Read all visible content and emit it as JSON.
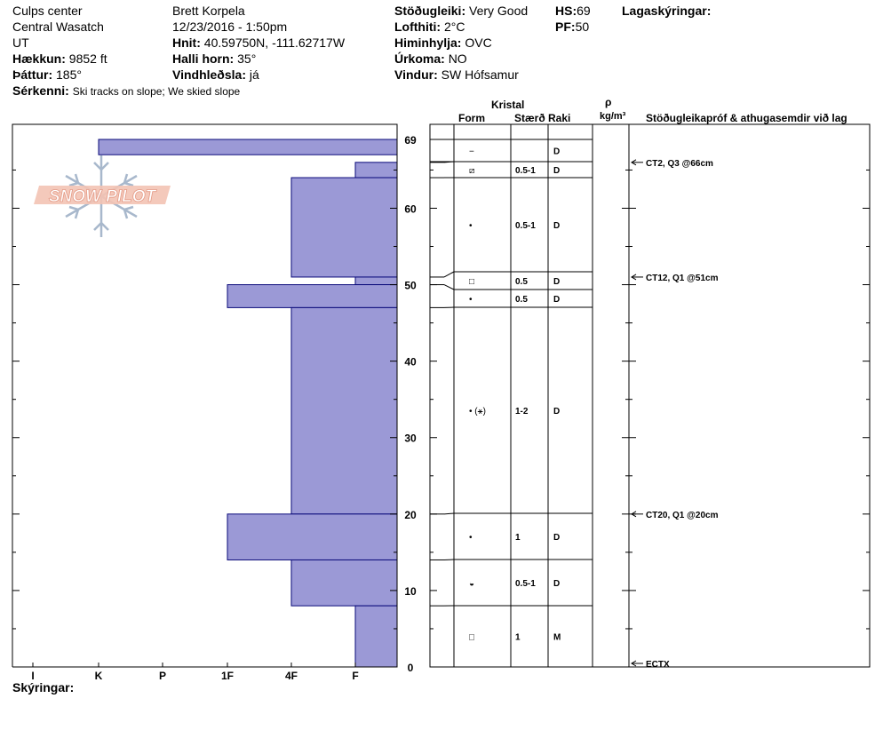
{
  "header": {
    "location": "Culps center",
    "range": "Central Wasatch",
    "state": "UT",
    "elevation_label": "Hækkun:",
    "elevation": "9852 ft",
    "aspect_label": "Þáttur:",
    "aspect": "185°",
    "features_label": "Sérkenni:",
    "features": "Ski tracks on slope; We skied slope",
    "observer": "Brett  Korpela",
    "datetime": "12/23/2016 - 1:50pm",
    "coords_label": "Hnit:",
    "coords": "40.59750N, -111.62717W",
    "slope_label": "Halli horn:",
    "slope": "35°",
    "wind_loading_label": "Vindhleðsla:",
    "wind_loading": "já",
    "stability_label": "Stöðugleiki:",
    "stability": "Very Good",
    "air_temp_label": "Lofthiti:",
    "air_temp": "2°C",
    "sky_label": "Himinhylja:",
    "sky": "OVC",
    "precip_label": "Úrkoma:",
    "precip": "NO",
    "wind_label": "Vindur:",
    "wind": "SW Hófsamur",
    "hs_label": "HS:",
    "hs": "69",
    "pf_label": "PF:",
    "pf": "50",
    "layer_notes_label": "Lagaskýringar:"
  },
  "logo_text": "SNOW PILOT",
  "footer_label": "Skýringar:",
  "colors": {
    "bar_fill": "#9b99d6",
    "bar_stroke": "#0a0a7a",
    "grid": "#000000",
    "logo": "#f0b8a8",
    "flake": "#a8b8cc"
  },
  "table": {
    "crystal_label": "Kristal",
    "form_label": "Form",
    "size_label": "Stærð",
    "moisture_label": "Raki",
    "rho_label": "ρ",
    "density_unit": "kg/m³",
    "tests_label": "Stöðugleikapróf & athugasemdir við lag"
  },
  "chart_data": {
    "type": "bar",
    "orientation": "horizontal",
    "description_axis": "height (cm)",
    "ylim": [
      0,
      69
    ],
    "y_ticks": [
      0,
      10,
      20,
      30,
      40,
      50,
      60,
      69
    ],
    "x_categories": [
      "I",
      "K",
      "P",
      "1F",
      "4F",
      "F"
    ],
    "hardness_layers": [
      {
        "bottom": 67,
        "top": 69,
        "hardness": "K"
      },
      {
        "bottom": 64,
        "top": 66,
        "hardness": "F"
      },
      {
        "bottom": 51,
        "top": 64,
        "hardness": "4F"
      },
      {
        "bottom": 50,
        "top": 51,
        "hardness": "F"
      },
      {
        "bottom": 47,
        "top": 50,
        "hardness": "1F"
      },
      {
        "bottom": 20,
        "top": 47,
        "hardness": "4F"
      },
      {
        "bottom": 14,
        "top": 20,
        "hardness": "1F"
      },
      {
        "bottom": 8,
        "top": 14,
        "hardness": "4F"
      },
      {
        "bottom": 0,
        "top": 8,
        "hardness": "F"
      }
    ],
    "layers": [
      {
        "bottom": 67,
        "top": 69,
        "form": "−",
        "size": "",
        "moisture": "D"
      },
      {
        "bottom": 64,
        "top": 66,
        "form": "⧄",
        "size": "0.5-1",
        "moisture": "D"
      },
      {
        "bottom": 51,
        "top": 64,
        "form": "•",
        "size": "0.5-1",
        "moisture": "D"
      },
      {
        "bottom": 50,
        "top": 51,
        "form": "□",
        "size": "0.5",
        "moisture": "D"
      },
      {
        "bottom": 47,
        "top": 50,
        "form": "•",
        "size": "0.5",
        "moisture": "D"
      },
      {
        "bottom": 20,
        "top": 47,
        "form": "• (⚹)",
        "size": "1-2",
        "moisture": "D"
      },
      {
        "bottom": 14,
        "top": 20,
        "form": "•",
        "size": "1",
        "moisture": "D"
      },
      {
        "bottom": 8,
        "top": 14,
        "form": "◒",
        "size": "0.5-1",
        "moisture": "D"
      },
      {
        "bottom": 0,
        "top": 8,
        "form": "□",
        "size": "1",
        "moisture": "M"
      }
    ],
    "tests": [
      {
        "depth": 66,
        "text": "CT2, Q3 @66cm"
      },
      {
        "depth": 51,
        "text": "CT12, Q1 @51cm"
      },
      {
        "depth": 20,
        "text": "CT20, Q1 @20cm"
      },
      {
        "depth": 0,
        "text": "ECTX"
      }
    ]
  }
}
